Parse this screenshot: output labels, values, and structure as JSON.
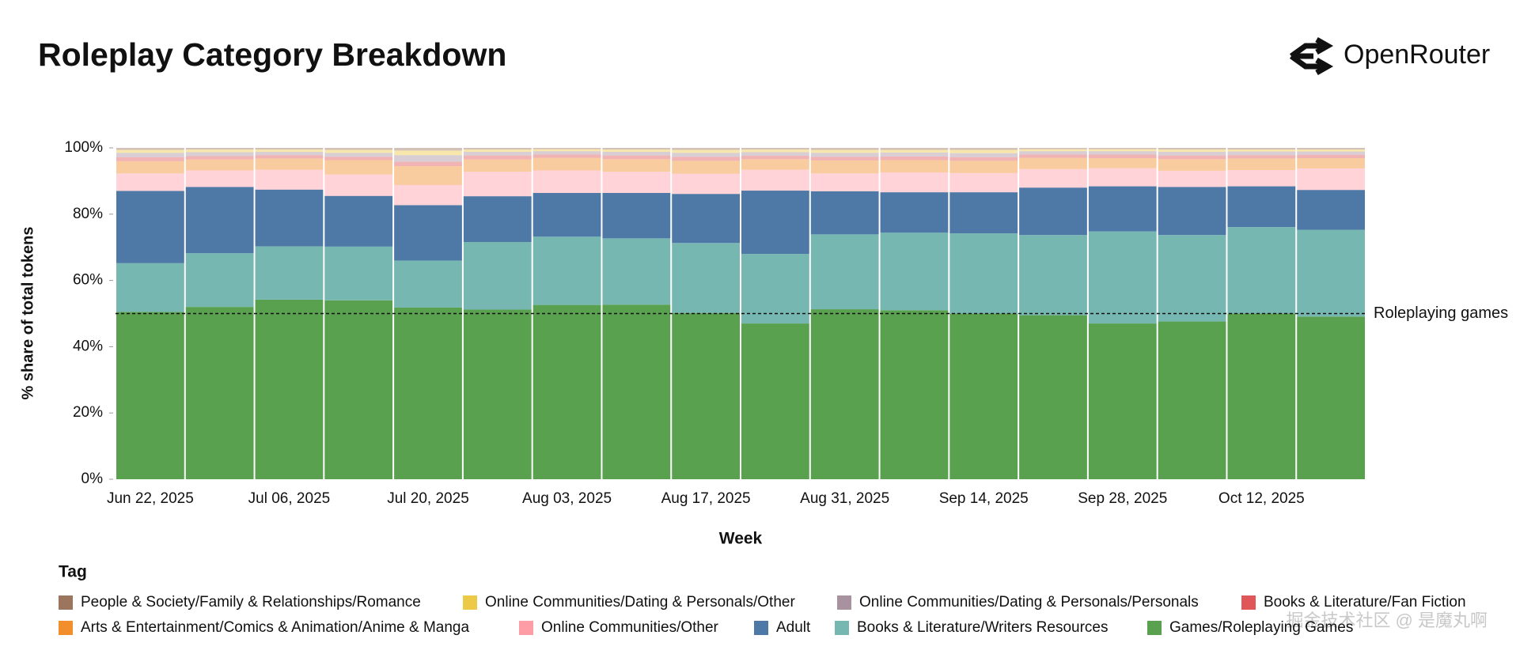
{
  "chart_data": {
    "type": "stacked_bar",
    "title": "Roleplay Category Breakdown",
    "brand": "OpenRouter",
    "x_label": "Week",
    "y_label": "% share of total tokens",
    "legend_title": "Tag",
    "watermark": "掘金技术社区 @ 是魔丸啊",
    "categories": [
      "Jun 22, 2025",
      null,
      "Jul 06, 2025",
      null,
      "Jul 20, 2025",
      null,
      "Aug 03, 2025",
      null,
      "Aug 17, 2025",
      null,
      "Aug 31, 2025",
      null,
      "Sep 14, 2025",
      null,
      "Sep 28, 2025",
      null,
      "Oct 12, 2025",
      null
    ],
    "ylim": [
      0,
      100
    ],
    "yticks": [
      {
        "value": 0,
        "label": "0%"
      },
      {
        "value": 20,
        "label": "20%"
      },
      {
        "value": 40,
        "label": "40%"
      },
      {
        "value": 60,
        "label": "60%"
      },
      {
        "value": 80,
        "label": "80%"
      },
      {
        "value": 100,
        "label": "100%"
      }
    ],
    "annotation": {
      "text": "Roleplaying games",
      "y": 50
    },
    "series": [
      {
        "name": "People & Society/Family & Relationships/Romance",
        "color": "#9c755f",
        "values": [
          0.6,
          0.5,
          0.5,
          0.6,
          0.8,
          0.5,
          0.4,
          0.5,
          0.6,
          0.5,
          0.6,
          0.6,
          0.6,
          0.4,
          0.4,
          0.5,
          0.5,
          0.5
        ]
      },
      {
        "name": "Online Communities/Dating & Personals/Other",
        "color": "#edc948",
        "values": [
          0.9,
          0.8,
          0.7,
          0.9,
          1.4,
          0.7,
          0.6,
          0.7,
          0.9,
          0.8,
          0.9,
          0.8,
          1,
          0.6,
          0.6,
          0.7,
          0.6,
          0.6
        ]
      },
      {
        "name": "Online Communities/Dating & Personals/Personals",
        "color": "#a8929f",
        "values": [
          1.3,
          1.2,
          1,
          1.2,
          2,
          1.1,
          1,
          1.1,
          1.2,
          1.1,
          1.2,
          1.2,
          1.2,
          1,
          1,
          1.1,
          1.1,
          1
        ]
      },
      {
        "name": "Books & Literature/Fan Fiction",
        "color": "#e15759",
        "values": [
          1.2,
          1,
          1,
          1,
          1.3,
          1.2,
          1,
          1.1,
          1.2,
          1,
          1.1,
          1.1,
          1.1,
          1,
          1.1,
          1.1,
          1,
          1
        ]
      },
      {
        "name": "Arts & Entertainment/Comics & Animation/Anime & Manga",
        "color": "#f28e2b",
        "values": [
          3.7,
          3.3,
          3.4,
          4.3,
          5.7,
          3.7,
          3.8,
          3.8,
          3.9,
          3.2,
          3.9,
          3.7,
          3.7,
          3.4,
          3,
          3.5,
          3.5,
          3.1
        ]
      },
      {
        "name": "Online Communities/Other",
        "color": "#ff9da7",
        "values": [
          5.3,
          5,
          6,
          6.5,
          6.1,
          7.4,
          6.8,
          6.4,
          6.1,
          6.3,
          5.4,
          6,
          5.8,
          5.6,
          5.5,
          4.9,
          4.9,
          6.5
        ]
      },
      {
        "name": "Adult",
        "color": "#4e79a7",
        "values": [
          21.8,
          20,
          17.1,
          15.3,
          16.7,
          13.8,
          13.2,
          13.7,
          14.8,
          19.1,
          13,
          12.2,
          12.4,
          14.3,
          13.6,
          14.5,
          12.3,
          12
        ]
      },
      {
        "name": "Books & Literature/Writers Resources",
        "color": "#76b7b2",
        "values": [
          14.7,
          16.2,
          16.1,
          16.2,
          14.2,
          20.4,
          20.6,
          20,
          21.1,
          21,
          22.6,
          23.4,
          24.2,
          24.2,
          27.8,
          26.1,
          26.1,
          26.2
        ]
      },
      {
        "name": "Games/Roleplaying Games",
        "color": "#59a14f",
        "values": [
          50.5,
          52,
          54.2,
          54,
          51.8,
          51.2,
          52.6,
          52.7,
          50.2,
          47,
          51.3,
          51,
          50,
          49.5,
          47,
          47.6,
          50,
          49.1
        ]
      }
    ]
  }
}
